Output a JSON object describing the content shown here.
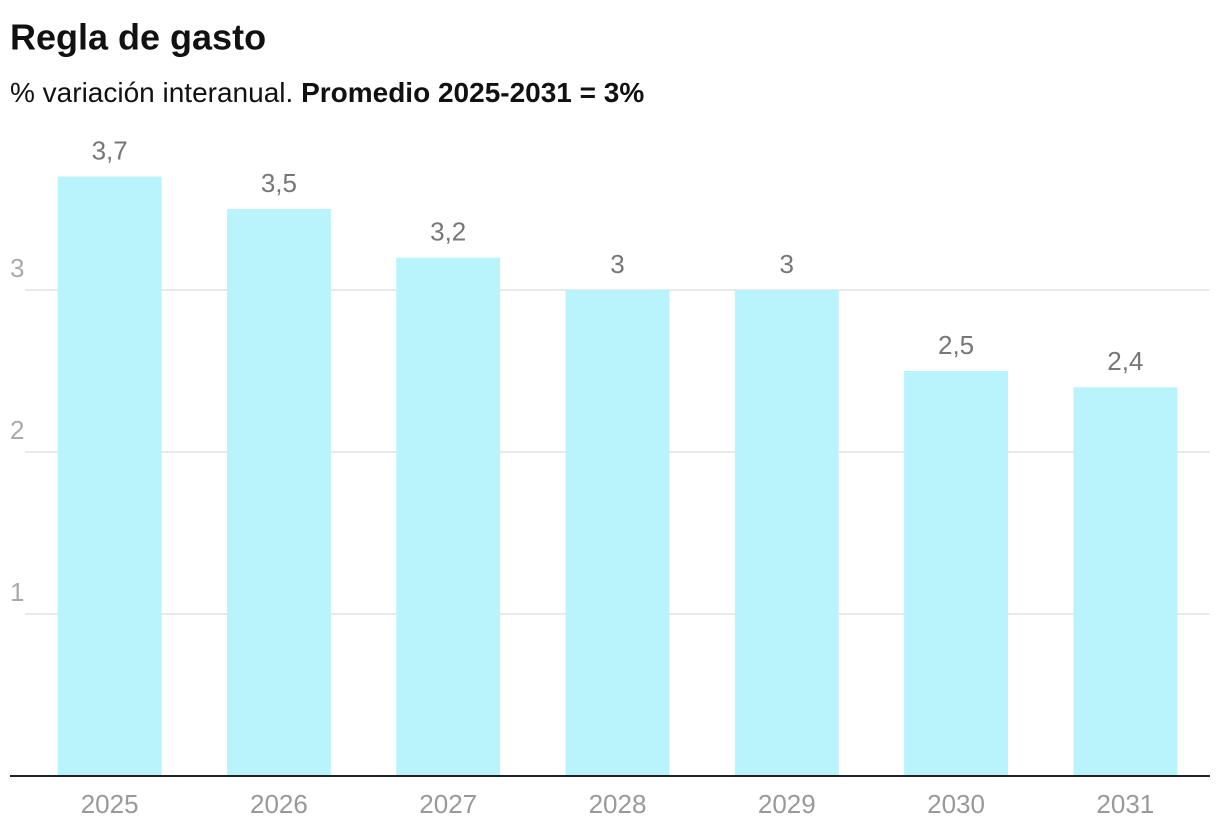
{
  "chart_data": {
    "type": "bar",
    "title": "Regla de gasto",
    "subtitle": "% variación interanual.",
    "subtitle_bold": "Promedio 2025-2031 = 3%",
    "categories": [
      "2025",
      "2026",
      "2027",
      "2028",
      "2029",
      "2030",
      "2031"
    ],
    "values": [
      3.7,
      3.5,
      3.2,
      3,
      3,
      2.5,
      2.4
    ],
    "value_labels": [
      "3,7",
      "3,5",
      "3,2",
      "3",
      "3",
      "2,5",
      "2,4"
    ],
    "color": "#b9f4fc",
    "ylim": [
      0,
      3.7
    ],
    "yticks": [
      1,
      2,
      3
    ],
    "grid": true
  }
}
